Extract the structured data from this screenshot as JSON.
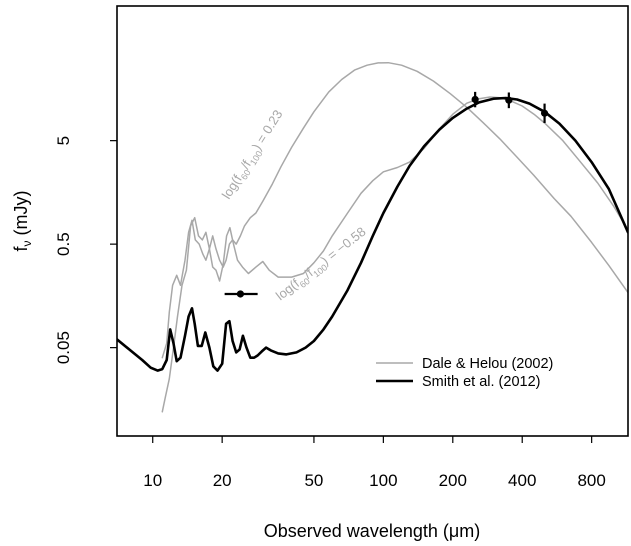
{
  "chart_data": {
    "type": "line",
    "xlabel": "Observed wavelength (μm)",
    "ylabel": "fν (mJy)",
    "xscale": "log",
    "yscale": "log",
    "xlim": [
      7,
      1150
    ],
    "ylim": [
      0.007,
      100
    ],
    "x_ticks": [
      10,
      20,
      50,
      100,
      200,
      400,
      800
    ],
    "x_tick_labels": [
      "10",
      "20",
      "50",
      "100",
      "200",
      "400",
      "800"
    ],
    "y_ticks": [
      0.05,
      0.5,
      5
    ],
    "y_tick_labels": [
      "0.05",
      "0.5",
      "5"
    ],
    "grid": false,
    "legend_position": "bottom-right",
    "colors": {
      "dale_helou": "#a8a8a8",
      "smith": "#000000",
      "points": "#000000"
    },
    "legend": [
      {
        "label": "Dale & Helou (2002)",
        "series": "dale_high"
      },
      {
        "label": "Smith et al. (2012)",
        "series": "smith"
      }
    ],
    "annotations": [
      {
        "text": "log(f60/f100) = 0.23",
        "x": 28,
        "y": 3.5,
        "angle": -58
      },
      {
        "text": "log(f60/f100) = −0.58",
        "x": 55,
        "y": 0.3,
        "angle": -38
      }
    ],
    "series": [
      {
        "key": "dale_high",
        "name": "Dale & Helou (2002)",
        "style": "gray",
        "x": [
          11.0,
          11.5,
          11.8,
          12.2,
          12.7,
          13.2,
          13.8,
          14.3,
          14.8,
          15.3,
          15.9,
          16.5,
          17.0,
          17.6,
          18.2,
          18.8,
          19.5,
          20.2,
          20.8,
          21.5,
          22.2,
          23.0,
          24.0,
          25.0,
          26.5,
          28.0,
          30.0,
          33.0,
          36.0,
          40.0,
          45.0,
          50.0,
          58.0,
          66.0,
          75.0,
          85.0,
          95.0,
          105.0,
          120.0,
          140.0,
          165.0,
          195.0,
          230.0,
          270.0,
          320.0,
          380.0,
          450.0,
          550.0,
          650.0,
          800.0,
          950.0,
          1150.0
        ],
        "y": [
          0.04,
          0.055,
          0.11,
          0.2,
          0.25,
          0.2,
          0.35,
          0.65,
          0.85,
          0.55,
          0.5,
          0.4,
          0.35,
          0.45,
          0.6,
          0.45,
          0.35,
          0.3,
          0.35,
          0.5,
          0.55,
          0.5,
          0.6,
          0.75,
          0.9,
          1.0,
          1.3,
          1.9,
          2.8,
          4.3,
          6.6,
          9.5,
          14.8,
          19.5,
          24.0,
          26.8,
          28.2,
          28.3,
          26.8,
          23.4,
          18.8,
          14.2,
          10.5,
          7.5,
          5.2,
          3.45,
          2.3,
          1.38,
          0.93,
          0.52,
          0.31,
          0.17
        ]
      },
      {
        "key": "dale_low",
        "name": "",
        "style": "gray",
        "x": [
          11.0,
          11.3,
          11.8,
          12.3,
          12.8,
          13.4,
          14.0,
          14.6,
          15.2,
          15.8,
          16.4,
          17.0,
          17.6,
          18.2,
          18.8,
          19.5,
          20.2,
          20.9,
          21.6,
          22.4,
          23.3,
          24.5,
          26.0,
          28.0,
          30.0,
          32.0,
          35.0,
          40.0,
          45.0,
          50.0,
          55.0,
          60.0,
          70.0,
          80.0,
          90.0,
          100.0,
          115.0,
          130.0,
          150.0,
          175.0,
          200.0,
          230.0,
          260.0,
          290.0,
          320.0,
          360.0,
          400.0,
          450.0,
          500.0,
          600.0,
          700.0,
          850.0,
          1000.0,
          1150.0
        ],
        "y": [
          0.012,
          0.016,
          0.025,
          0.05,
          0.1,
          0.2,
          0.28,
          0.75,
          0.9,
          0.6,
          0.55,
          0.65,
          0.45,
          0.3,
          0.28,
          0.22,
          0.32,
          0.6,
          0.72,
          0.5,
          0.35,
          0.3,
          0.26,
          0.3,
          0.34,
          0.28,
          0.24,
          0.24,
          0.26,
          0.33,
          0.43,
          0.6,
          1.0,
          1.55,
          2.05,
          2.5,
          2.75,
          3.1,
          4.2,
          6.5,
          9.0,
          11.5,
          12.7,
          13.2,
          13.0,
          12.0,
          10.8,
          9.0,
          7.4,
          5.0,
          3.3,
          1.95,
          1.15,
          0.68
        ]
      },
      {
        "key": "smith",
        "name": "Smith et al. (2012)",
        "style": "black",
        "x": [
          7.0,
          8.0,
          9.0,
          9.8,
          10.5,
          11.0,
          11.5,
          11.9,
          12.3,
          12.7,
          13.2,
          13.8,
          14.3,
          14.8,
          15.2,
          15.7,
          16.3,
          16.9,
          17.6,
          18.3,
          19.1,
          20.0,
          20.8,
          21.5,
          22.2,
          23.0,
          23.8,
          24.6,
          25.5,
          26.5,
          27.5,
          28.5,
          29.7,
          31.0,
          32.5,
          35.0,
          38.0,
          42.0,
          46.0,
          50.0,
          55.0,
          60.0,
          70.0,
          80.0,
          90.0,
          100.0,
          115.0,
          130.0,
          150.0,
          175.0,
          200.0,
          230.0,
          260.0,
          300.0,
          340.0,
          380.0,
          430.0,
          500.0,
          580.0,
          680.0,
          800.0,
          950.0,
          1150.0
        ],
        "y": [
          0.06,
          0.047,
          0.038,
          0.032,
          0.03,
          0.031,
          0.038,
          0.075,
          0.055,
          0.037,
          0.04,
          0.065,
          0.1,
          0.12,
          0.085,
          0.052,
          0.052,
          0.07,
          0.05,
          0.033,
          0.03,
          0.035,
          0.085,
          0.09,
          0.058,
          0.045,
          0.048,
          0.065,
          0.05,
          0.04,
          0.04,
          0.042,
          0.046,
          0.05,
          0.047,
          0.044,
          0.043,
          0.045,
          0.05,
          0.058,
          0.075,
          0.1,
          0.18,
          0.33,
          0.6,
          1.0,
          1.8,
          2.85,
          4.4,
          6.4,
          8.3,
          10.2,
          11.7,
          12.7,
          12.9,
          12.5,
          11.4,
          9.5,
          7.3,
          5.0,
          3.1,
          1.7,
          0.65
        ]
      }
    ],
    "points": [
      {
        "x": 24.0,
        "y": 0.165,
        "xerr": [
          20.5,
          28.5
        ],
        "yerr": [
          0.165,
          0.165
        ]
      },
      {
        "x": 250.0,
        "y": 12.5,
        "yerr": [
          10.5,
          14.8
        ]
      },
      {
        "x": 350.0,
        "y": 12.3,
        "yerr": [
          10.3,
          14.6
        ]
      },
      {
        "x": 500.0,
        "y": 9.2,
        "yerr": [
          7.4,
          11.4
        ]
      }
    ]
  }
}
